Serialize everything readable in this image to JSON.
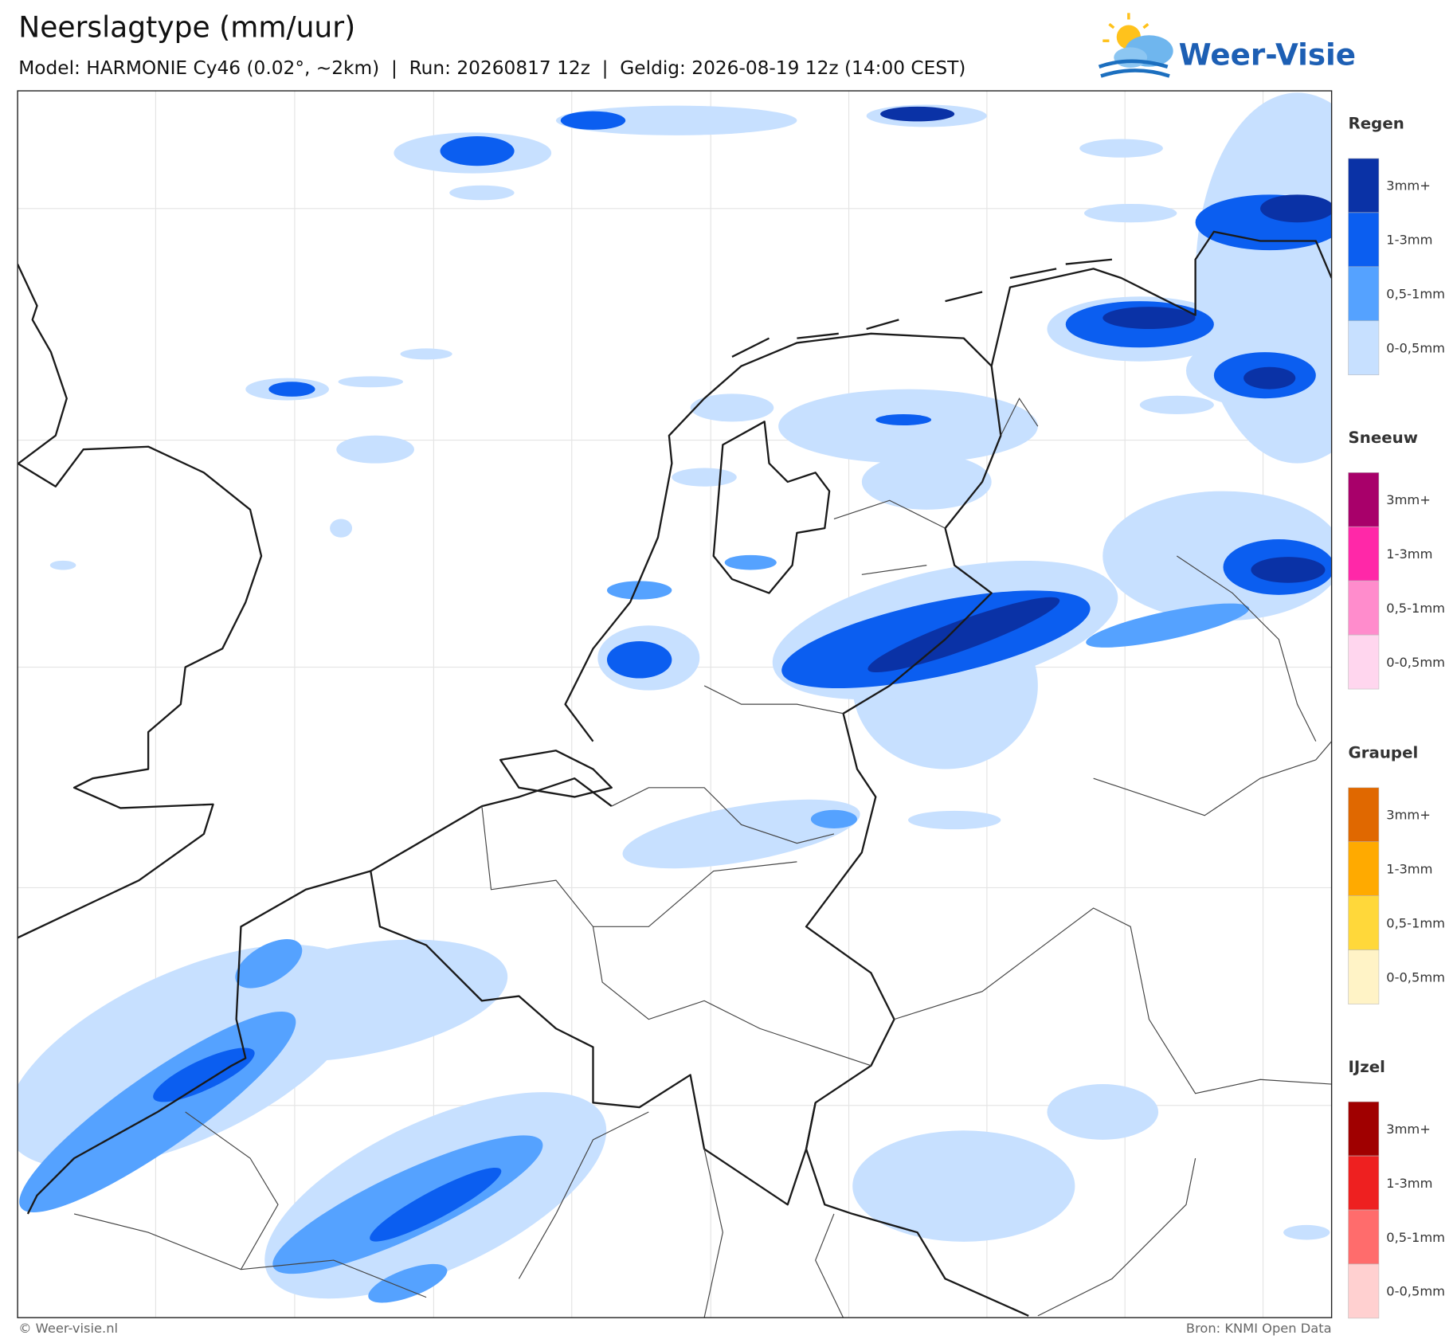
{
  "header": {
    "title": "Neerslagtype (mm/uur)",
    "subtitle": "Model: HARMONIE Cy46 (0.02°, ~2km)  |  Run: 20260817 12z  |  Geldig: 2026-08-19 12z (14:00 CEST)"
  },
  "logo": {
    "text": "Weer-Visie"
  },
  "legend": {
    "groups": [
      {
        "title": "Regen",
        "items": [
          {
            "label": "3mm+",
            "color": "#0a32a6"
          },
          {
            "label": "1-3mm",
            "color": "#0b5ef0"
          },
          {
            "label": "0,5-1mm",
            "color": "#55a2ff"
          },
          {
            "label": "0-0,5mm",
            "color": "#c7e0ff"
          }
        ]
      },
      {
        "title": "Sneeuw",
        "items": [
          {
            "label": "3mm+",
            "color": "#a8006a"
          },
          {
            "label": "1-3mm",
            "color": "#ff28a8"
          },
          {
            "label": "0,5-1mm",
            "color": "#ff8ccc"
          },
          {
            "label": "0-0,5mm",
            "color": "#ffd6ee"
          }
        ]
      },
      {
        "title": "Graupel",
        "items": [
          {
            "label": "3mm+",
            "color": "#e06800"
          },
          {
            "label": "1-3mm",
            "color": "#ffaa00"
          },
          {
            "label": "0,5-1mm",
            "color": "#ffd83a"
          },
          {
            "label": "0-0,5mm",
            "color": "#fff3c6"
          }
        ]
      },
      {
        "title": "IJzel",
        "items": [
          {
            "label": "3mm+",
            "color": "#a00000"
          },
          {
            "label": "1-3mm",
            "color": "#ee2020"
          },
          {
            "label": "0,5-1mm",
            "color": "#ff6c6c"
          },
          {
            "label": "0-0,5mm",
            "color": "#ffd0d0"
          }
        ]
      }
    ]
  },
  "footer": {
    "credit": "© Weer-visie.nl",
    "source": "Bron: KNMI Open Data"
  }
}
